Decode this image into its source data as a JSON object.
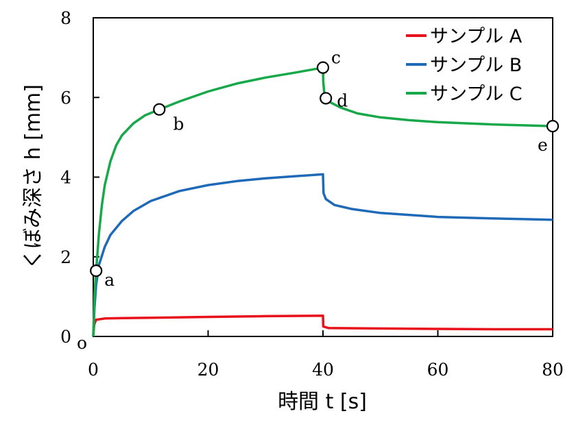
{
  "chart_data": {
    "type": "line",
    "xlabel": "時間 t [s]",
    "ylabel": "くぼみ深さ h [mm]",
    "xlim": [
      0,
      80
    ],
    "ylim": [
      0,
      8
    ],
    "xticks": [
      0,
      20,
      40,
      60,
      80
    ],
    "yticks": [
      0,
      2,
      4,
      6,
      8
    ],
    "origin_label": "o",
    "grid": false,
    "legend_position": "top-right",
    "series": [
      {
        "name": "サンプル A",
        "color": "#e8101a",
        "points": [
          [
            0,
            0
          ],
          [
            0.15,
            0.3
          ],
          [
            0.5,
            0.42
          ],
          [
            2,
            0.45
          ],
          [
            5,
            0.46
          ],
          [
            10,
            0.47
          ],
          [
            20,
            0.49
          ],
          [
            30,
            0.51
          ],
          [
            40,
            0.52
          ],
          [
            40.05,
            0.25
          ],
          [
            41,
            0.21
          ],
          [
            50,
            0.2
          ],
          [
            60,
            0.19
          ],
          [
            70,
            0.18
          ],
          [
            80,
            0.18
          ]
        ]
      },
      {
        "name": "サンプル B",
        "color": "#1f6ab8",
        "points": [
          [
            0,
            0
          ],
          [
            0.2,
            0.7
          ],
          [
            0.5,
            1.3
          ],
          [
            1,
            1.8
          ],
          [
            2,
            2.25
          ],
          [
            3,
            2.55
          ],
          [
            5,
            2.9
          ],
          [
            7,
            3.15
          ],
          [
            10,
            3.4
          ],
          [
            15,
            3.65
          ],
          [
            20,
            3.8
          ],
          [
            25,
            3.9
          ],
          [
            30,
            3.97
          ],
          [
            35,
            4.02
          ],
          [
            40,
            4.07
          ],
          [
            40.1,
            3.6
          ],
          [
            40.5,
            3.45
          ],
          [
            42,
            3.3
          ],
          [
            45,
            3.2
          ],
          [
            50,
            3.1
          ],
          [
            60,
            3.0
          ],
          [
            70,
            2.96
          ],
          [
            80,
            2.93
          ]
        ]
      },
      {
        "name": "サンプル C",
        "color": "#17a84a",
        "points": [
          [
            0,
            0
          ],
          [
            0.2,
            1.0
          ],
          [
            0.5,
            1.65
          ],
          [
            1,
            2.6
          ],
          [
            1.5,
            3.3
          ],
          [
            2,
            3.8
          ],
          [
            3,
            4.4
          ],
          [
            4,
            4.8
          ],
          [
            5,
            5.05
          ],
          [
            7,
            5.35
          ],
          [
            9,
            5.55
          ],
          [
            11.5,
            5.7
          ],
          [
            15,
            5.9
          ],
          [
            20,
            6.15
          ],
          [
            25,
            6.35
          ],
          [
            30,
            6.5
          ],
          [
            35,
            6.62
          ],
          [
            40,
            6.75
          ],
          [
            40.05,
            6.4
          ],
          [
            40.3,
            6.0
          ],
          [
            41,
            5.9
          ],
          [
            43,
            5.75
          ],
          [
            46,
            5.6
          ],
          [
            50,
            5.5
          ],
          [
            55,
            5.43
          ],
          [
            60,
            5.38
          ],
          [
            65,
            5.35
          ],
          [
            70,
            5.32
          ],
          [
            75,
            5.3
          ],
          [
            80,
            5.28
          ]
        ]
      }
    ],
    "annotations": [
      {
        "label": "a",
        "x": 0.5,
        "y": 1.65
      },
      {
        "label": "b",
        "x": 11.5,
        "y": 5.7
      },
      {
        "label": "c",
        "x": 40,
        "y": 6.75
      },
      {
        "label": "d",
        "x": 40.5,
        "y": 5.98
      },
      {
        "label": "e",
        "x": 80,
        "y": 5.28
      }
    ]
  }
}
